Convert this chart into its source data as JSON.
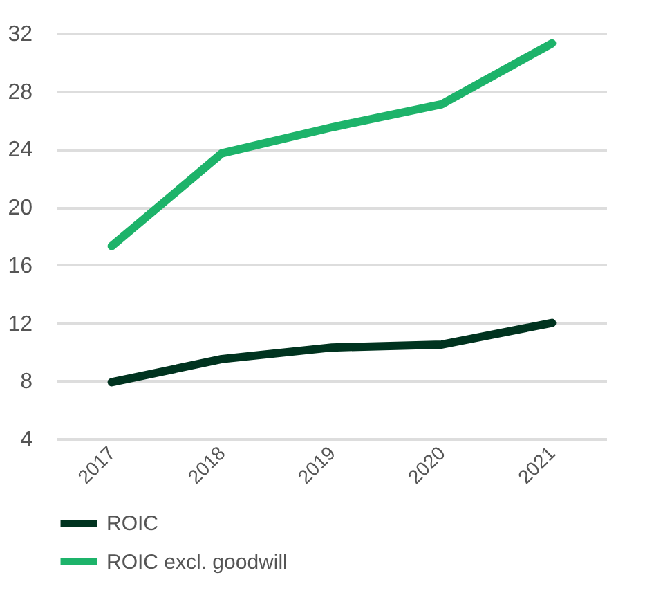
{
  "chart_data": {
    "type": "line",
    "categories": [
      "2017",
      "2018",
      "2019",
      "2020",
      "2021"
    ],
    "series": [
      {
        "name": "ROIC",
        "color": "#00331f",
        "values": [
          7.9,
          9.5,
          10.3,
          10.5,
          12.0
        ]
      },
      {
        "name": "ROIC excl. goodwill",
        "color": "#1db36a",
        "values": [
          17.3,
          23.7,
          25.5,
          27.1,
          31.3
        ]
      }
    ],
    "ylim": [
      4,
      32
    ],
    "yticks": [
      4,
      8,
      12,
      16,
      20,
      24,
      28,
      32
    ],
    "grid": "y",
    "legend": "bottom left",
    "marker": "none",
    "line_style": "solid"
  }
}
